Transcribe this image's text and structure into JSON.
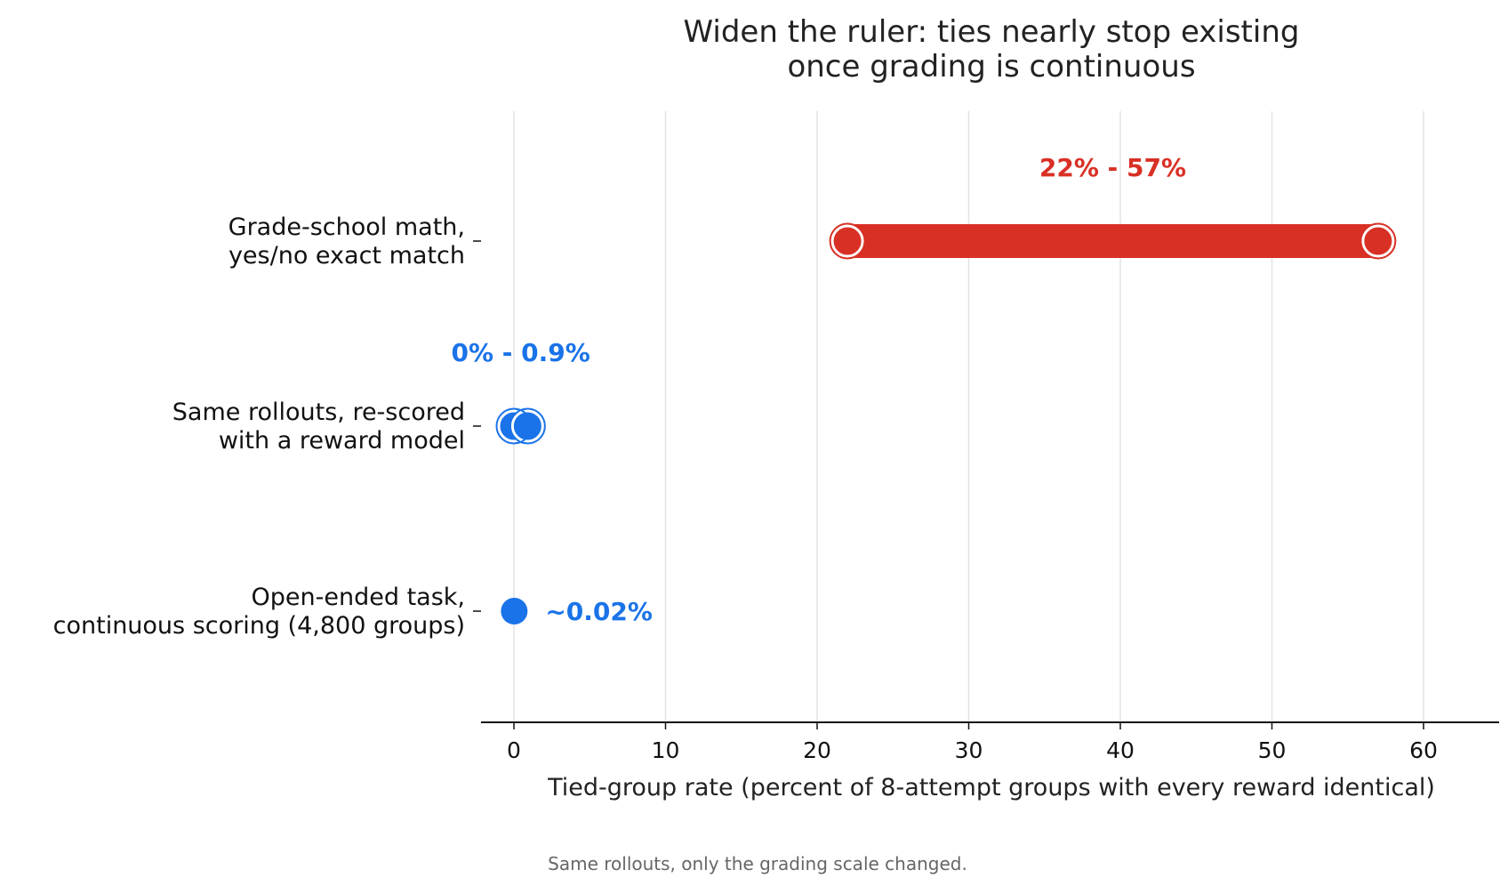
{
  "chart_data": {
    "type": "dumbbell",
    "title": "Widen the ruler: ties nearly stop existing\nonce grading is continuous",
    "xlabel": "Tied-group rate (percent of 8-attempt groups with every reward identical)",
    "ylabel": "",
    "xlim": [
      -2,
      65
    ],
    "xticks": [
      0,
      10,
      20,
      30,
      40,
      50,
      60
    ],
    "grid": "vertical",
    "caption": "Same rollouts, only the grading scale changed.",
    "rows": [
      {
        "label": "Grade-school math,\nyes/no exact match",
        "low": 22,
        "high": 57,
        "annotation": "22% - 57%",
        "annotation_position": "above",
        "color": "#d93025"
      },
      {
        "label": "Same rollouts, re-scored\nwith a reward model",
        "low": 0,
        "high": 0.9,
        "annotation": "0% - 0.9%",
        "annotation_position": "above",
        "color": "#1a73e8"
      },
      {
        "label": "Open-ended task,\ncontinuous scoring (4,800 groups)",
        "low": 0.02,
        "high": 0.02,
        "annotation": "~0.02%",
        "annotation_position": "right",
        "color": "#1a73e8"
      }
    ]
  }
}
